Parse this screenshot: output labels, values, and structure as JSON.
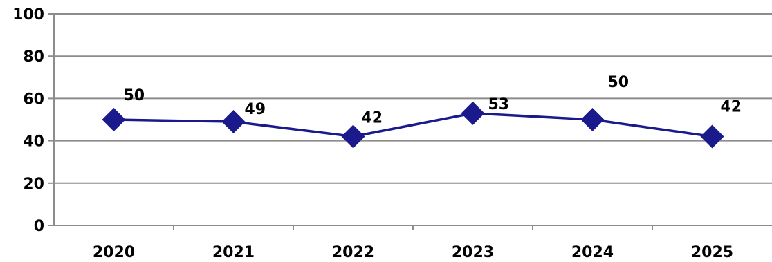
{
  "chart_data": {
    "type": "line",
    "title": "",
    "xlabel": "",
    "ylabel": "",
    "categories": [
      "2020",
      "2021",
      "2022",
      "2023",
      "2024",
      "2025"
    ],
    "series": [
      {
        "values": [
          50,
          49,
          42,
          53,
          50,
          42
        ],
        "data_labels": [
          "50",
          "49",
          "42",
          "53",
          "50",
          "42"
        ],
        "color": "#1a1a8c",
        "marker": "diamond"
      }
    ],
    "ylim": [
      0,
      100
    ],
    "y_ticks": [
      "0",
      "20",
      "40",
      "60",
      "80",
      "100"
    ],
    "grid": true,
    "legend": "none"
  }
}
